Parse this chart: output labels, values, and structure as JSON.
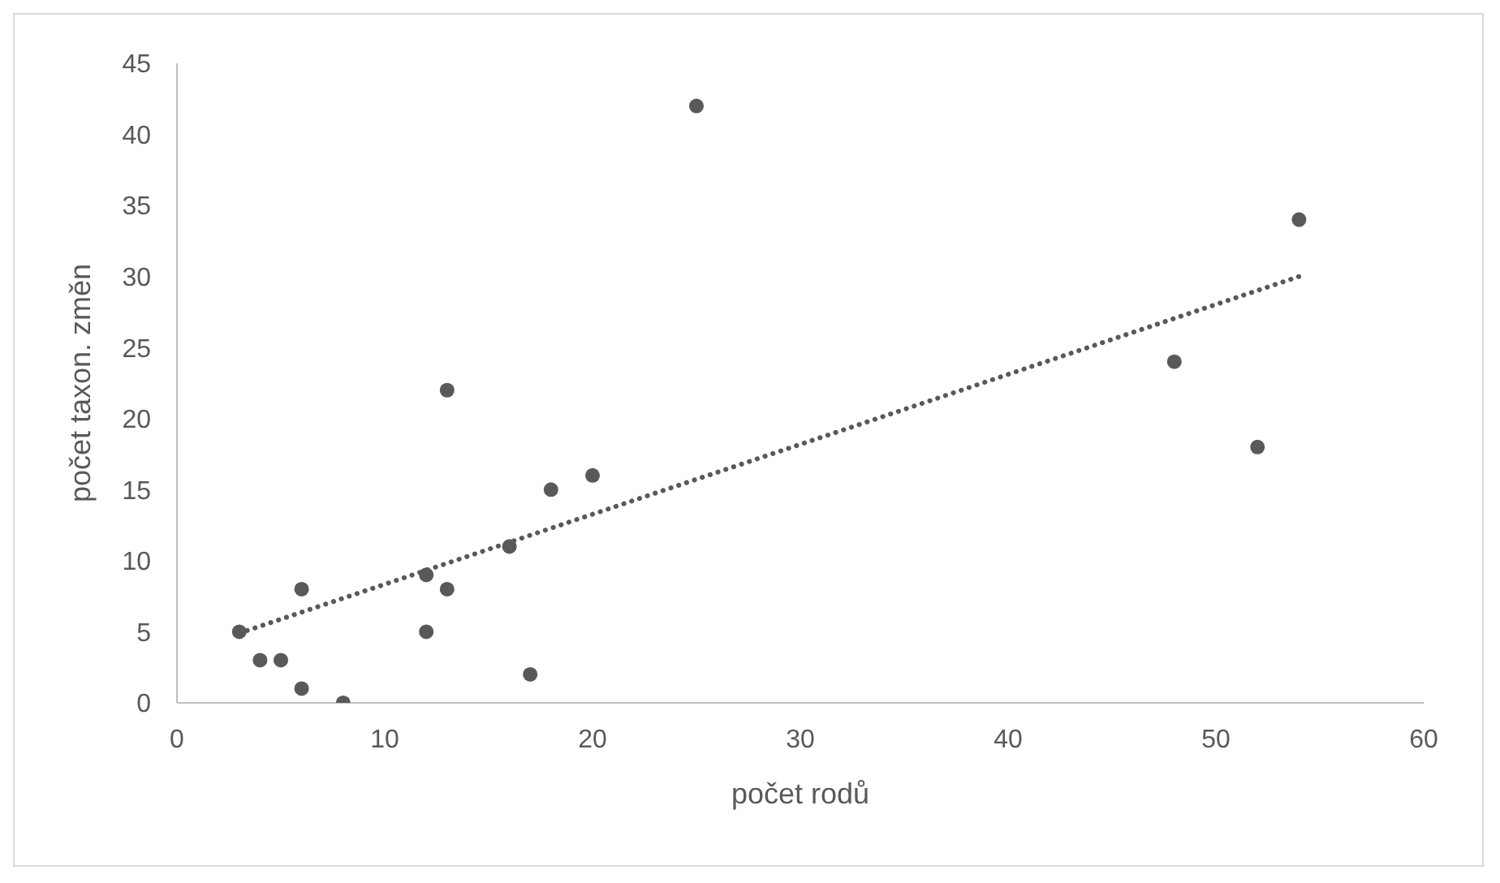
{
  "chart_data": {
    "type": "scatter",
    "xlabel": "počet rodů",
    "ylabel": "počet taxon. změn",
    "xlim": [
      0,
      60
    ],
    "xticks": [
      0,
      10,
      20,
      30,
      40,
      50,
      60
    ],
    "ylim": [
      0,
      45
    ],
    "yticks": [
      0,
      5,
      10,
      15,
      20,
      25,
      30,
      35,
      40,
      45
    ],
    "grid": false,
    "marker": "circle",
    "series": [
      {
        "type": "scatter",
        "color": "#595959",
        "x": [
          3,
          4,
          5,
          6,
          6,
          8,
          12,
          12,
          13,
          13,
          16,
          17,
          18,
          20,
          25,
          48,
          52,
          54
        ],
        "values": [
          5,
          3,
          3,
          1,
          8,
          0,
          9,
          5,
          8,
          22,
          11,
          2,
          15,
          16,
          42,
          24,
          18,
          34
        ]
      },
      {
        "type": "line",
        "color": "#595959",
        "line_style": "dotted",
        "marker": "none",
        "x": [
          3,
          54
        ],
        "values": [
          4.9,
          30
        ]
      }
    ]
  }
}
